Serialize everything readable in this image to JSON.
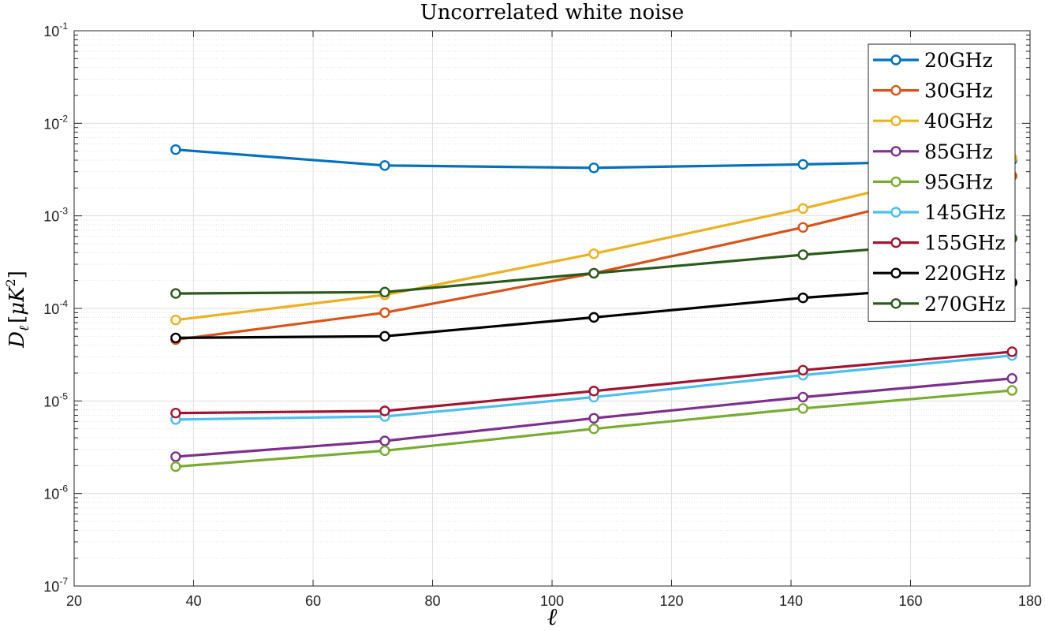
{
  "chart_data": {
    "type": "line",
    "title": "Uncorrelated white noise",
    "xlabel": "ℓ",
    "ylabel": "D_ℓ [μK²]",
    "ylabel_parts": {
      "main": "D",
      "sub": "ℓ",
      "unit_open": "[",
      "unit": "μK",
      "unit_exp": "2",
      "unit_close": "]"
    },
    "xlim": [
      20,
      180
    ],
    "ylim": [
      1e-07,
      0.1
    ],
    "yscale": "log",
    "grid": true,
    "legend_position": "top-right",
    "x_ticks": [
      "20",
      "40",
      "60",
      "80",
      "100",
      "120",
      "140",
      "160",
      "180"
    ],
    "y_tick_base": "10",
    "y_tick_exponents": [
      "-7",
      "-6",
      "-5",
      "-4",
      "-3",
      "-2",
      "-1"
    ],
    "x": [
      37,
      72,
      107,
      142,
      177
    ],
    "series": [
      {
        "name": "20GHz",
        "color": "#0072BD",
        "values": [
          0.0052,
          0.0035,
          0.0033,
          0.0036,
          0.004
        ]
      },
      {
        "name": "30GHz",
        "color": "#D95319",
        "values": [
          4.6e-05,
          9e-05,
          0.00024,
          0.00075,
          0.0027
        ]
      },
      {
        "name": "40GHz",
        "color": "#EDB120",
        "values": [
          7.5e-05,
          0.00014,
          0.00039,
          0.0012,
          0.0042
        ]
      },
      {
        "name": "85GHz",
        "color": "#7E2F8E",
        "values": [
          2.5e-06,
          3.7e-06,
          6.5e-06,
          1.1e-05,
          1.75e-05
        ]
      },
      {
        "name": "95GHz",
        "color": "#77AC30",
        "values": [
          1.95e-06,
          2.9e-06,
          5e-06,
          8.3e-06,
          1.3e-05
        ]
      },
      {
        "name": "145GHz",
        "color": "#4DBEEE",
        "values": [
          6.3e-06,
          6.8e-06,
          1.1e-05,
          1.9e-05,
          3.1e-05
        ]
      },
      {
        "name": "155GHz",
        "color": "#A2142F",
        "values": [
          7.4e-06,
          7.8e-06,
          1.28e-05,
          2.15e-05,
          3.4e-05
        ]
      },
      {
        "name": "220GHz",
        "color": "#000000",
        "values": [
          4.8e-05,
          5e-05,
          8e-05,
          0.00013,
          0.00019
        ]
      },
      {
        "name": "270GHz",
        "color": "#2A5A1A",
        "values": [
          0.000145,
          0.00015,
          0.00024,
          0.00038,
          0.00057
        ]
      }
    ]
  }
}
